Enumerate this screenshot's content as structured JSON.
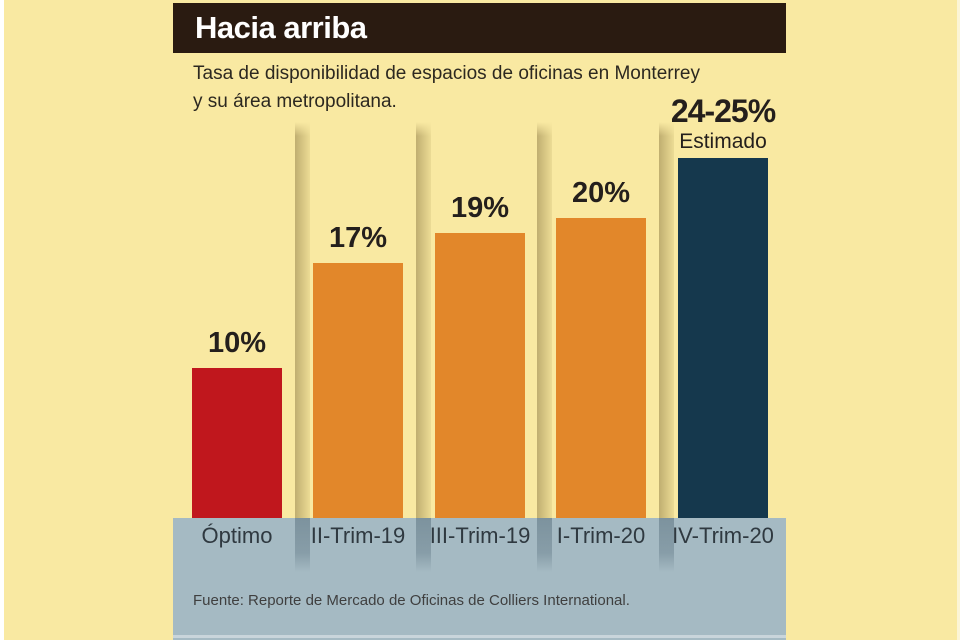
{
  "page": {
    "background": "#f9e9a2",
    "left_edge_color": "#ffffff"
  },
  "header": {
    "title": "Hacia arriba",
    "bg": "#2a1b11",
    "text_color": "#ffffff"
  },
  "subtitle": {
    "lines": [
      "Tasa de disponibilidad de espacios de oficinas en Monterrey",
      "y su área metropolitana."
    ]
  },
  "chart_data": {
    "type": "bar",
    "title": "Hacia arriba",
    "subtitle": "Tasa de disponibilidad de espacios de oficinas en Monterrey y su área metropolitana.",
    "categories": [
      "Óptimo",
      "II-Trim-19",
      "III-Trim-19",
      "I-Trim-20",
      "IV-Trim-20"
    ],
    "values": [
      10,
      17,
      19,
      20,
      24
    ],
    "value_labels": [
      "10%",
      "17%",
      "19%",
      "20%",
      "24-25%"
    ],
    "annotations": [
      "",
      "",
      "",
      "",
      "Estimado"
    ],
    "bar_colors": [
      "#c0171d",
      "#e2872a",
      "#e2872a",
      "#e2872a",
      "#15384d"
    ],
    "axis_band_color": "#a5bac3",
    "xlabel": "",
    "ylabel": "",
    "ylim": [
      0,
      26
    ],
    "grid": false,
    "legend": false,
    "notes": "IV-Trim-20 value is an estimate of 24-25%"
  },
  "source": {
    "text": "Fuente: Reporte de Mercado de Oficinas de Colliers International."
  }
}
